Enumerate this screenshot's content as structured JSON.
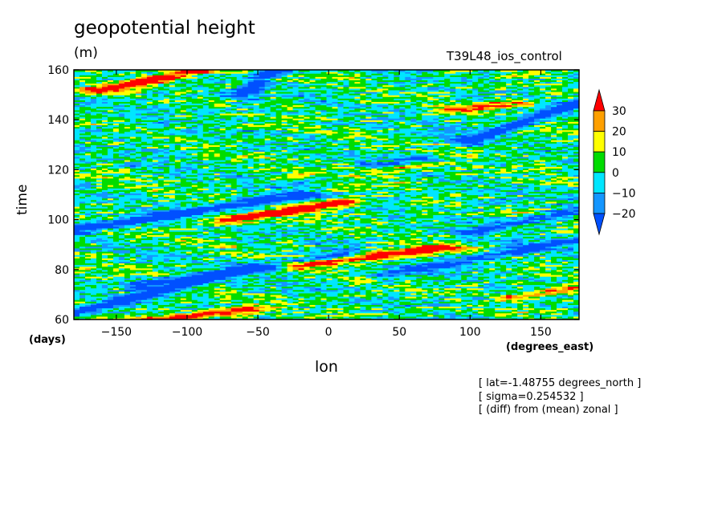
{
  "header": {
    "title": "geopotential height",
    "units": "(m)",
    "run": "T39L48_ios_control"
  },
  "notes": [
    "[ lat=-1.48755 degrees_north ]",
    "[ sigma=0.254532 ]",
    "[ (diff) from (mean) zonal ]"
  ],
  "chart_data": {
    "type": "heatmap",
    "title": "geopotential height",
    "xlabel": "lon",
    "xunits": "(degrees_east)",
    "ylabel": "time",
    "yunits": "(days)",
    "xlim": [
      -180,
      177
    ],
    "ylim": [
      60,
      160
    ],
    "xticks": [
      -150,
      -100,
      -50,
      0,
      50,
      100,
      150
    ],
    "xtick_labels": [
      "-150",
      "-100",
      "-50",
      "0",
      "50",
      "100",
      "150"
    ],
    "yticks": [
      60,
      80,
      100,
      120,
      140,
      160
    ],
    "ytick_labels": [
      "60",
      "80",
      "100",
      "120",
      "140",
      "160"
    ],
    "colorbar": {
      "levels": [
        -20,
        -10,
        0,
        10,
        20,
        30
      ],
      "labels": [
        "-20",
        "-10",
        "0",
        "10",
        "20",
        "30"
      ],
      "colors": [
        "#0050ff",
        "#1496ff",
        "#00e6ff",
        "#00dc00",
        "#ffff00",
        "#ffa000",
        "#ff0000"
      ],
      "extend": "both"
    },
    "features": [
      {
        "x0": -180,
        "t0": 63,
        "x1": -60,
        "t1": 80,
        "sign": -1,
        "amp": 1.6
      },
      {
        "x0": -180,
        "t0": 96,
        "x1": -20,
        "t1": 110,
        "sign": -1,
        "amp": 1.6
      },
      {
        "x0": -130,
        "t0": 74,
        "x1": 10,
        "t1": 86,
        "sign": -1,
        "amp": 1.3
      },
      {
        "x0": 40,
        "t0": 78,
        "x1": 177,
        "t1": 92,
        "sign": -1,
        "amp": 1.2
      },
      {
        "x0": 100,
        "t0": 132,
        "x1": 177,
        "t1": 147,
        "sign": -1,
        "amp": 1.5
      },
      {
        "x0": -60,
        "t0": 150,
        "x1": -40,
        "t1": 160,
        "sign": -1,
        "amp": 1.4
      },
      {
        "x0": -20,
        "t0": 116,
        "x1": 60,
        "t1": 124,
        "sign": -1,
        "amp": 1.1
      },
      {
        "x0": 100,
        "t0": 95,
        "x1": 177,
        "t1": 104,
        "sign": -1,
        "amp": 1.0
      },
      {
        "x0": -70,
        "t0": 100,
        "x1": 10,
        "t1": 107,
        "sign": 1,
        "amp": 2.0
      },
      {
        "x0": -20,
        "t0": 82,
        "x1": 80,
        "t1": 89,
        "sign": 1,
        "amp": 2.0
      },
      {
        "x0": -160,
        "t0": 152,
        "x1": -90,
        "t1": 160,
        "sign": 1,
        "amp": 1.9
      },
      {
        "x0": -120,
        "t0": 60,
        "x1": -60,
        "t1": 64,
        "sign": 1,
        "amp": 1.7
      },
      {
        "x0": -20,
        "t0": 117,
        "x1": 60,
        "t1": 122,
        "sign": 1,
        "amp": 1.2
      },
      {
        "x0": 90,
        "t0": 144,
        "x1": 130,
        "t1": 147,
        "sign": 1,
        "amp": 1.2
      },
      {
        "x0": 130,
        "t0": 69,
        "x1": 177,
        "t1": 73,
        "sign": 1,
        "amp": 1.1
      }
    ]
  }
}
